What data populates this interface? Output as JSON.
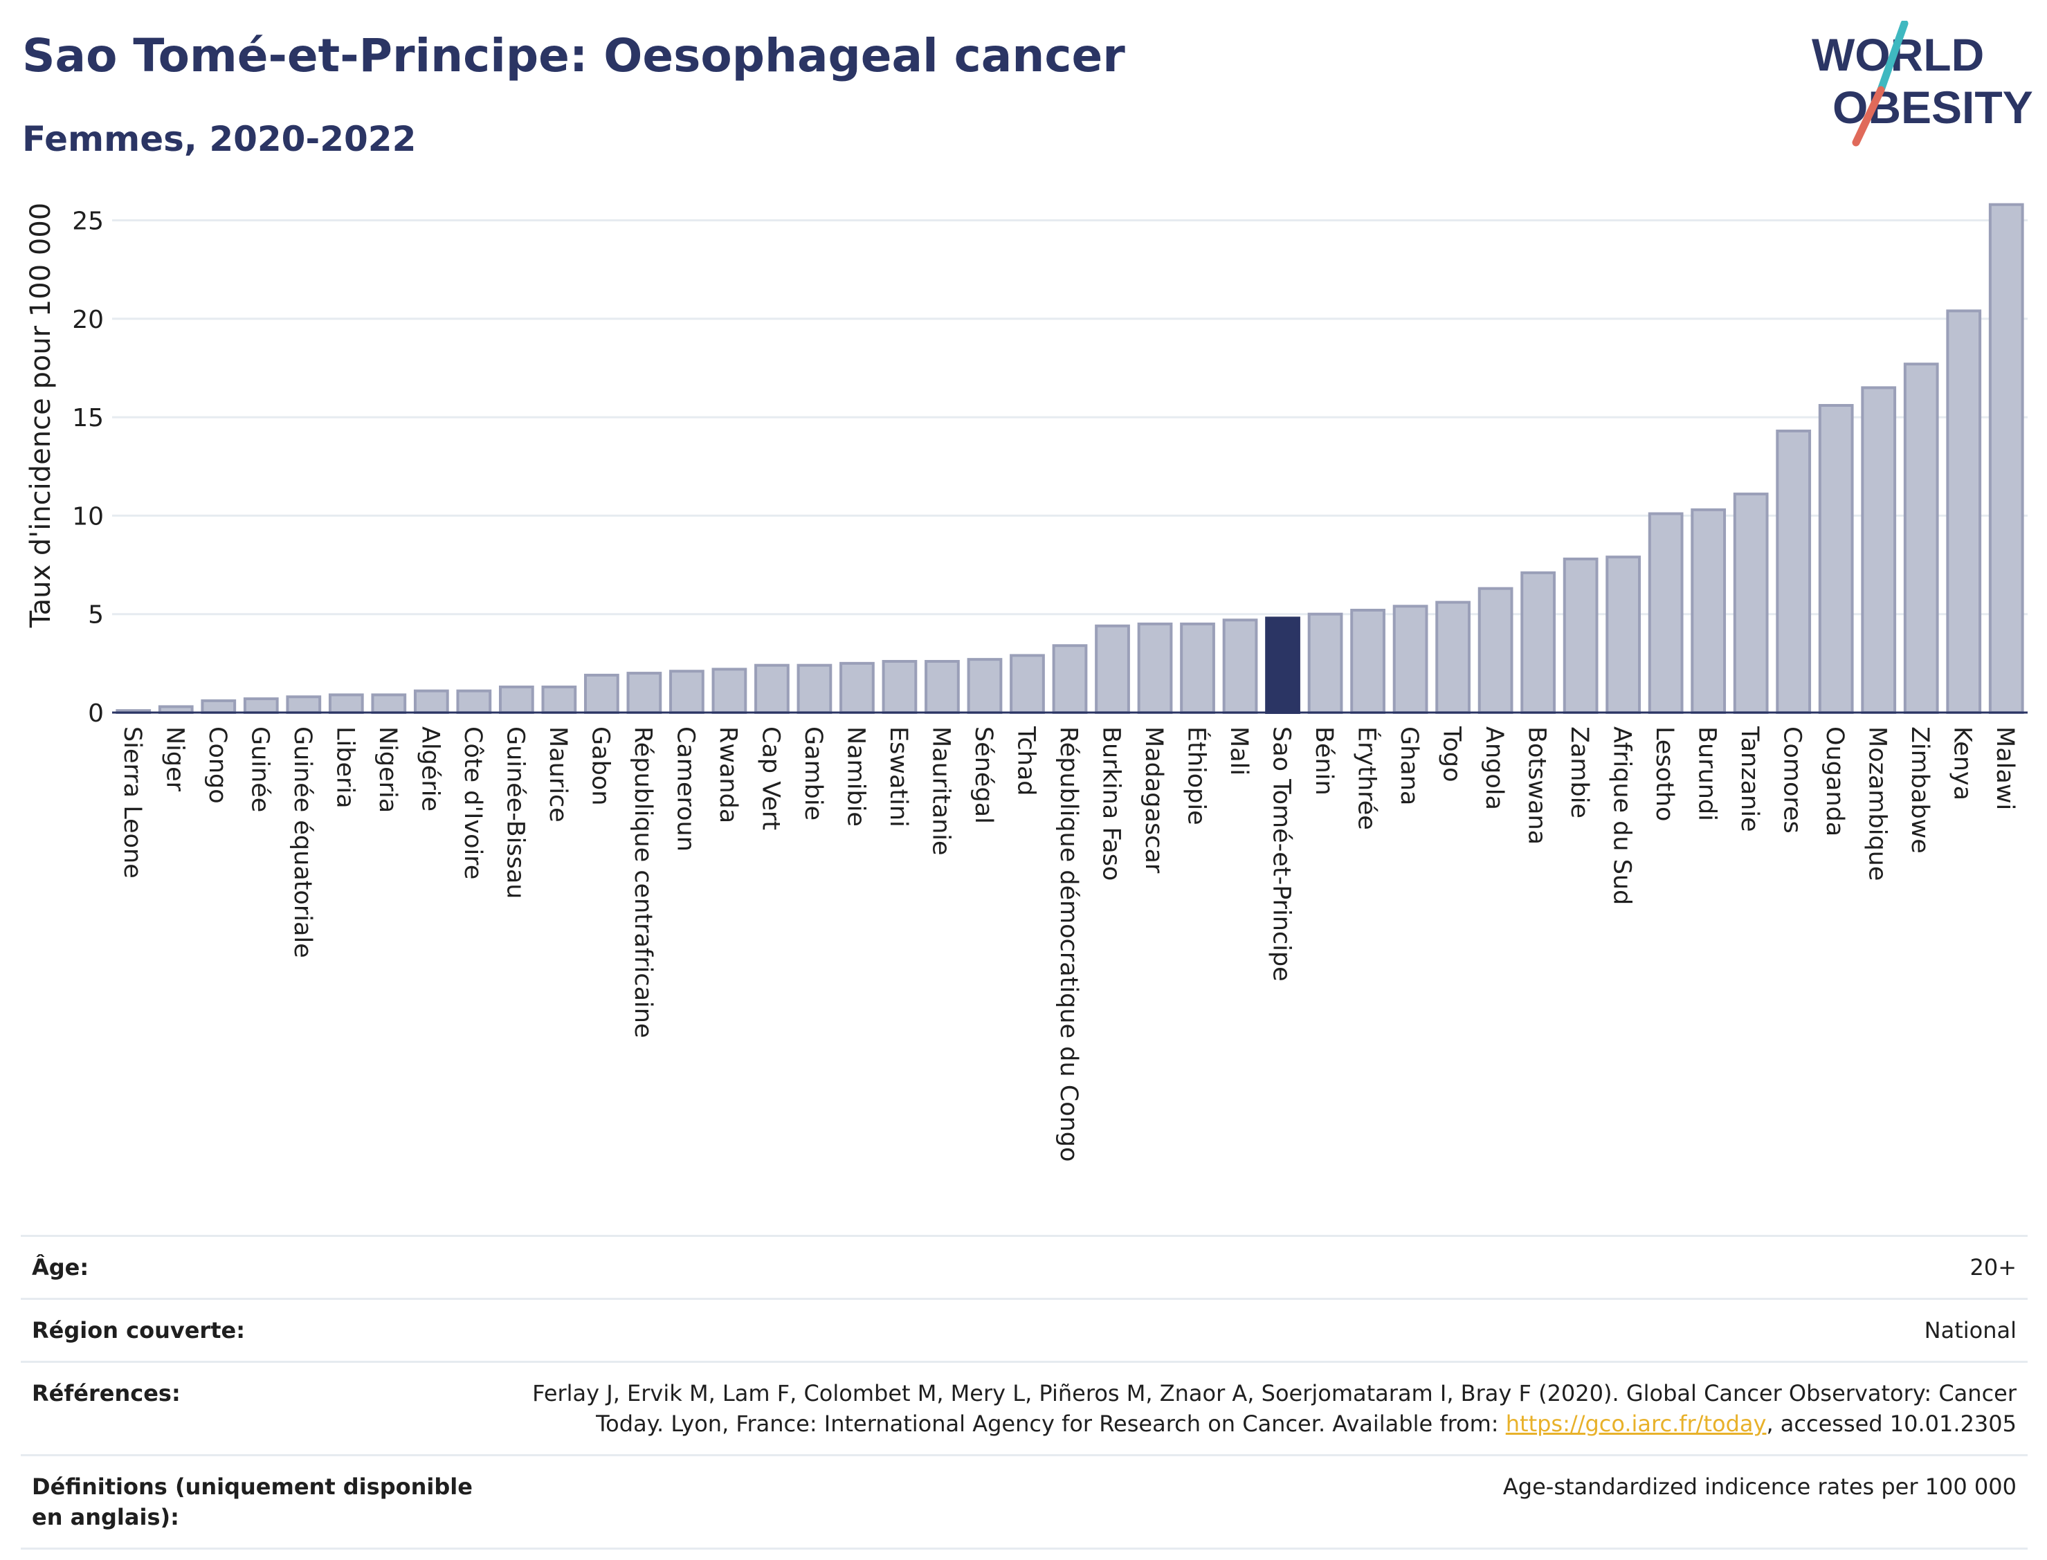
{
  "header": {
    "title": "Sao Tomé-et-Principe: Oesophageal cancer",
    "subtitle": "Femmes, 2020-2022"
  },
  "logo": {
    "line1": "WORLD",
    "line2": "OBESITY",
    "accent_teal": "#3fb8c0",
    "accent_red": "#e06a5a"
  },
  "colors": {
    "bar": "#bcc1d1",
    "bar_border": "#9a9fb8",
    "highlight": "#2b3564",
    "grid": "#e6ebf0"
  },
  "chart_data": {
    "type": "bar",
    "ylabel": "Taux d'incidence pour 100 000",
    "ylim": [
      0,
      26
    ],
    "yticks": [
      0,
      5,
      10,
      15,
      20,
      25
    ],
    "highlight": "Sao Tomé-et-Principe",
    "categories": [
      "Sierra Leone",
      "Niger",
      "Congo",
      "Guinée",
      "Guinée équatoriale",
      "Liberia",
      "Nigeria",
      "Algérie",
      "Côte d'Ivoire",
      "Guinée-Bissau",
      "Maurice",
      "Gabon",
      "République centrafricaine",
      "Cameroun",
      "Rwanda",
      "Cap Vert",
      "Gambie",
      "Namibie",
      "Eswatini",
      "Mauritanie",
      "Sénégal",
      "Tchad",
      "République démocratique du Congo",
      "Burkina Faso",
      "Madagascar",
      "Éthiopie",
      "Mali",
      "Sao Tomé-et-Principe",
      "Bénin",
      "Érythrée",
      "Ghana",
      "Togo",
      "Angola",
      "Botswana",
      "Zambie",
      "Afrique du Sud",
      "Lesotho",
      "Burundi",
      "Tanzanie",
      "Comores",
      "Ouganda",
      "Mozambique",
      "Zimbabwe",
      "Kenya",
      "Malawi"
    ],
    "values": [
      0.1,
      0.3,
      0.6,
      0.7,
      0.8,
      0.9,
      0.9,
      1.1,
      1.1,
      1.3,
      1.3,
      1.9,
      2.0,
      2.1,
      2.2,
      2.4,
      2.4,
      2.5,
      2.6,
      2.6,
      2.7,
      2.9,
      3.4,
      4.4,
      4.5,
      4.5,
      4.7,
      4.8,
      5.0,
      5.2,
      5.4,
      5.6,
      6.3,
      7.1,
      7.8,
      7.9,
      10.1,
      10.3,
      11.1,
      14.3,
      15.6,
      16.5,
      17.7,
      20.4,
      25.8
    ]
  },
  "meta": {
    "age_label": "Âge:",
    "age_value": "20+",
    "region_label": "Région couverte:",
    "region_value": "National",
    "refs_label": "Références:",
    "refs_text_1": "Ferlay J, Ervik M, Lam F, Colombet M, Mery L, Piñeros M, Znaor A, Soerjomataram I, Bray F (2020). Global Cancer Observatory: Cancer",
    "refs_text_2": "Today. Lyon, France: International Agency for Research on Cancer. Available from: ",
    "refs_link": "https://gco.iarc.fr/today",
    "refs_text_3": ", accessed 10.01.2305",
    "defs_label": "Définitions (uniquement disponible en anglais):",
    "defs_value": "Age-standardized indicence rates per 100 000"
  }
}
